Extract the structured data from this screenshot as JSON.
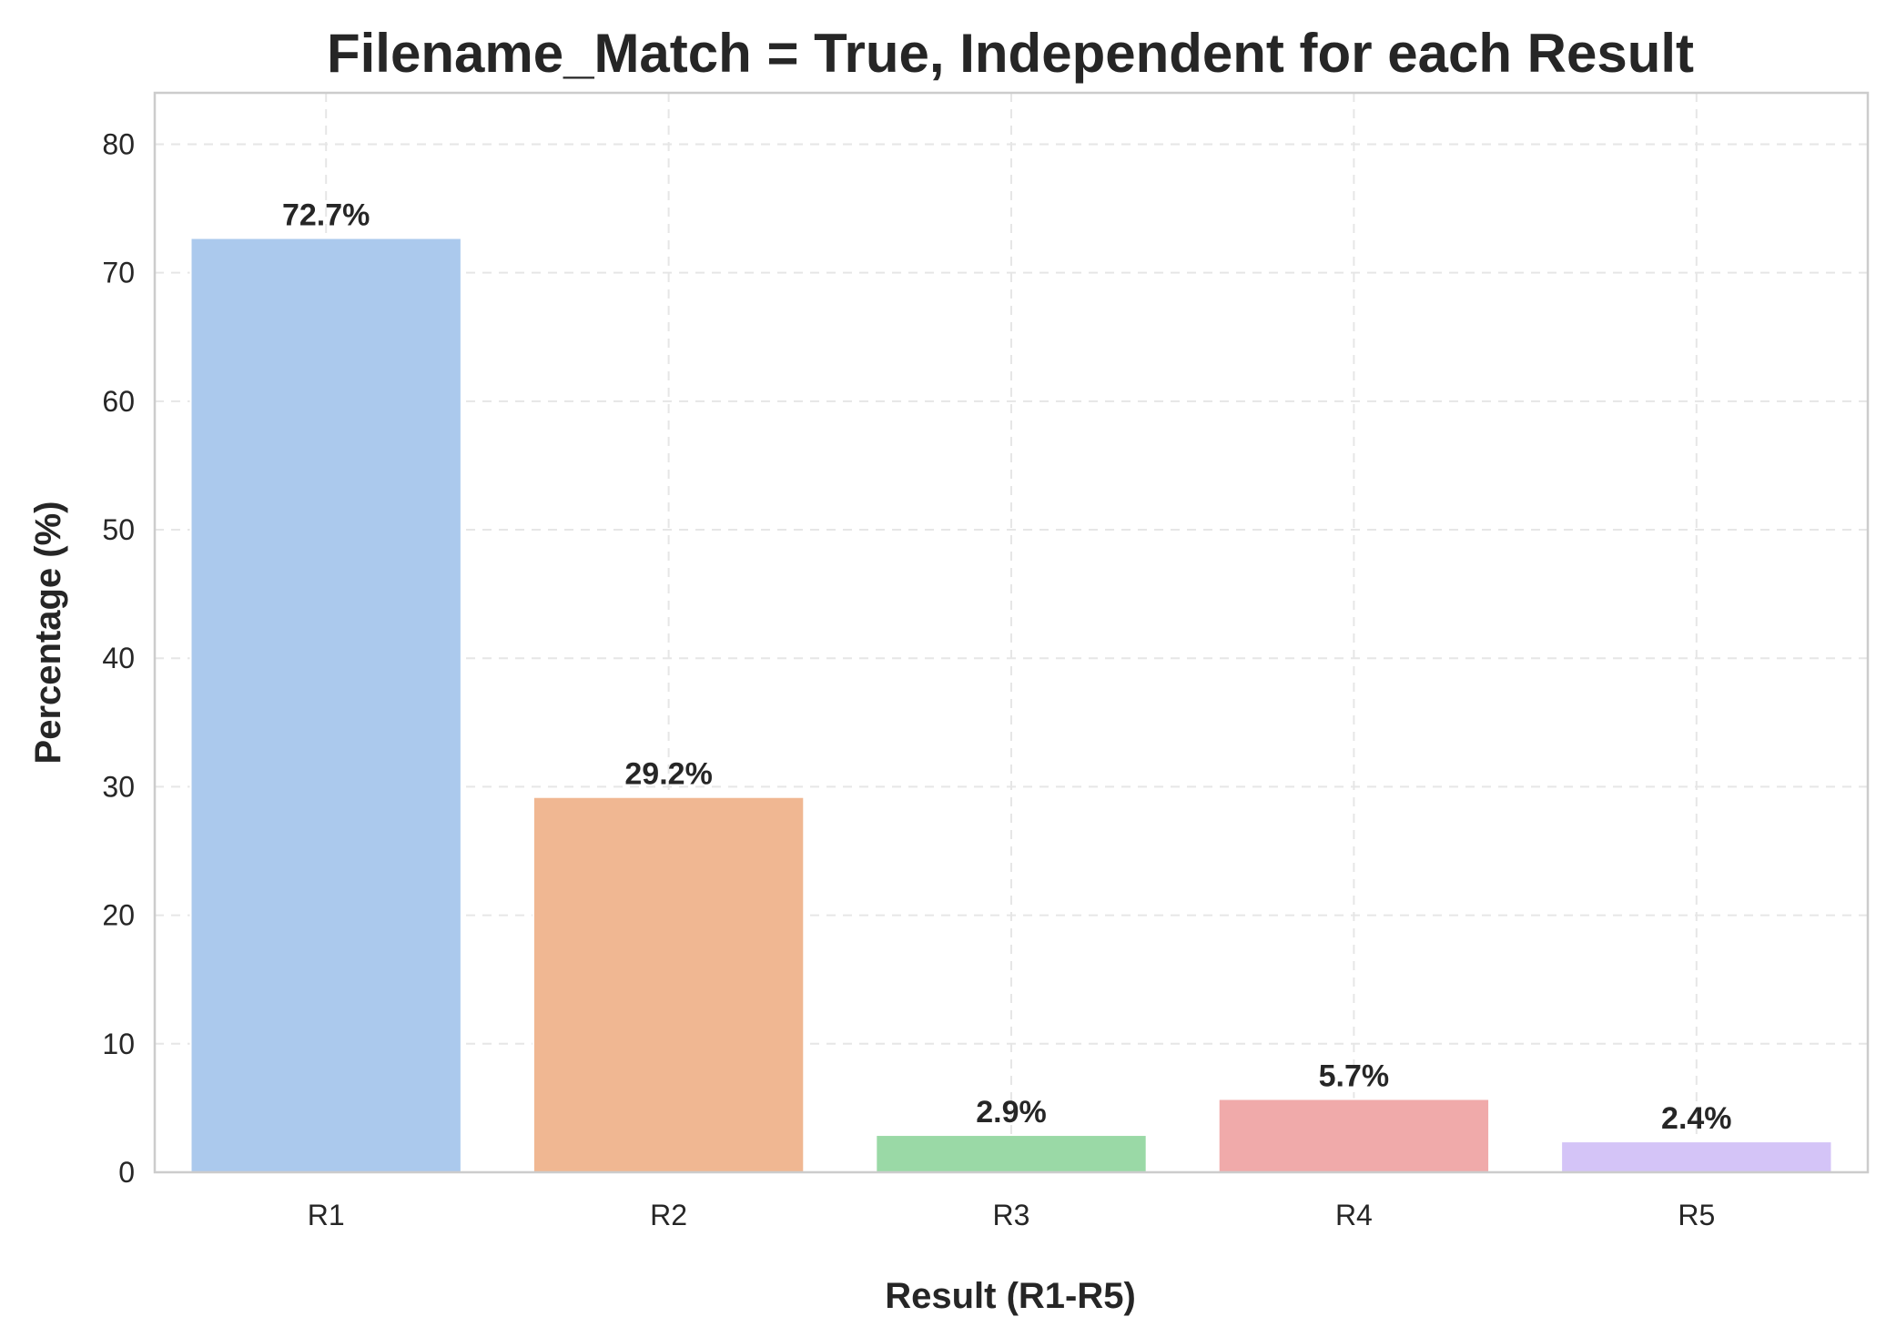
{
  "chart_data": {
    "type": "bar",
    "title": "Filename_Match = True, Independent for each Result",
    "xlabel": "Result (R1-R5)",
    "ylabel": "Percentage (%)",
    "categories": [
      "R1",
      "R2",
      "R3",
      "R4",
      "R5"
    ],
    "values": [
      72.7,
      29.2,
      2.9,
      5.7,
      2.4
    ],
    "value_labels": [
      "72.7%",
      "29.2%",
      "2.9%",
      "5.7%",
      "2.4%"
    ],
    "colors": [
      "#abc9ed",
      "#f0b792",
      "#9ad9a6",
      "#f0aaaa",
      "#d4c4f7"
    ],
    "ylim": [
      0,
      84
    ],
    "yticks": [
      0,
      10,
      20,
      30,
      40,
      50,
      60,
      70,
      80
    ],
    "grid": true,
    "legend": "none"
  }
}
